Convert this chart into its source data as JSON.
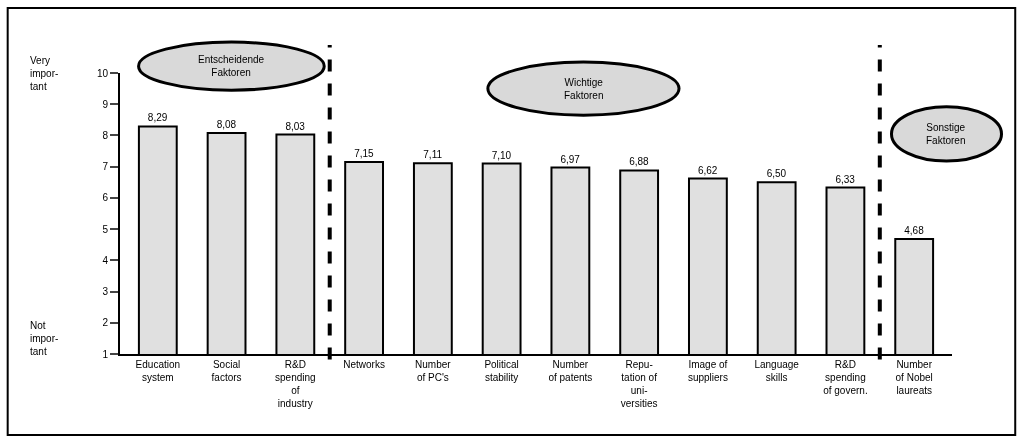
{
  "chart_data": {
    "type": "bar",
    "categories": [
      "Education\nsystem",
      "Social\nfactors",
      "R&D\nspending\nof\nindustry",
      "Networks",
      "Number\nof PC's",
      "Political\nstability",
      "Number\nof patents",
      "Repu-\ntation of\nuni-\nversities",
      "Image of\nsuppliers",
      "Language\nskills",
      "R&D\nspending\nof govern.",
      "Number\nof Nobel\nlaureats"
    ],
    "values": [
      8.29,
      8.08,
      8.03,
      7.15,
      7.11,
      7.1,
      6.97,
      6.88,
      6.62,
      6.5,
      6.33,
      4.68
    ],
    "value_labels": [
      "8,29",
      "8,08",
      "8,03",
      "7,15",
      "7,11",
      "7,10",
      "6,97",
      "6,88",
      "6,62",
      "6,50",
      "6,33",
      "4,68"
    ],
    "color": "#e0e0e0",
    "ylim": [
      1,
      10
    ],
    "yticks": [
      1,
      2,
      3,
      4,
      5,
      6,
      7,
      8,
      9,
      10
    ],
    "annotations": [
      "Very\nimpor-\ntant",
      "Not\nimpor-\ntant",
      "Entscheidende\nFaktoren",
      "Wichtige\nFaktoren",
      "Sonstige\nFaktoren"
    ]
  }
}
